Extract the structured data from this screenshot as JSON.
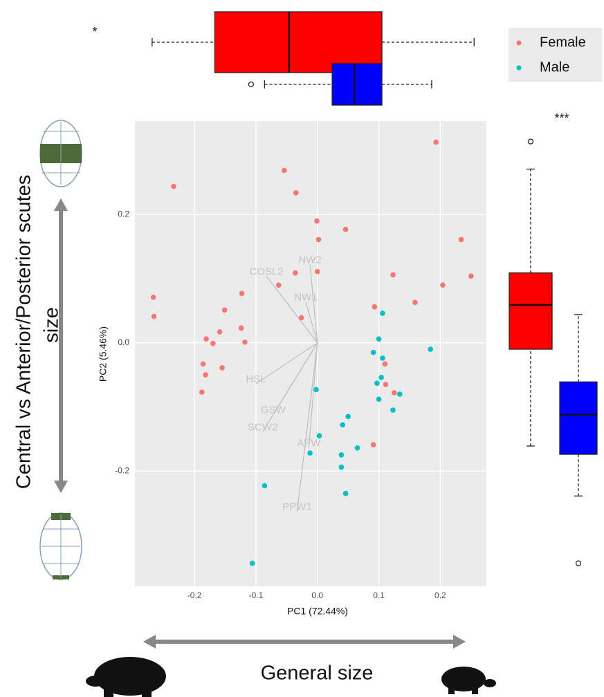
{
  "chart_data": [
    {
      "type": "scatter",
      "x_label": "PC1 (72.44%)",
      "y_label": "PC2 (5.46%)",
      "xlim": [
        -0.297,
        0.275
      ],
      "ylim": [
        -0.38,
        0.346
      ],
      "xticks": [
        -0.2,
        -0.1,
        {
          "value": 0,
          "label": "0.0"
        },
        0.1,
        0.2
      ],
      "yticks": [
        -0.2,
        {
          "value": 0,
          "label": "0.0"
        },
        0.2
      ],
      "grid": true,
      "legend": "top-right",
      "series": [
        {
          "name": "Female",
          "color": "#F8766D",
          "x": [
            -0.234,
            -0.054,
            -0.035,
            0.193,
            -0.001,
            0.002,
            0.046,
            0.234,
            0.25,
            0.204,
            0.123,
            0.159,
            0.093,
            -0.036,
            0,
            -0.063,
            -0.026,
            -0.123,
            -0.267,
            -0.266,
            -0.151,
            -0.159,
            -0.181,
            -0.17,
            -0.186,
            -0.182,
            -0.155,
            -0.188,
            -0.124,
            -0.118,
            0.11,
            0.111,
            0.125,
            0.091
          ],
          "values": [
            0.244,
            0.269,
            0.234,
            0.313,
            0.19,
            0.161,
            0.177,
            0.161,
            0.104,
            0.09,
            0.106,
            0.063,
            0.056,
            0.109,
            0.111,
            0.09,
            0.039,
            0.077,
            0.071,
            0.041,
            0.051,
            0.017,
            0.006,
            -0.001,
            -0.033,
            -0.05,
            -0.039,
            -0.077,
            0.023,
            0.001,
            -0.033,
            -0.065,
            -0.078,
            -0.159
          ]
        },
        {
          "name": "Male",
          "color": "#00BFC4",
          "x": [
            0.106,
            0.1,
            0.091,
            0.106,
            0.097,
            0.104,
            0.1,
            0.134,
            0.123,
            0.184,
            -0.002,
            0.05,
            0.041,
            0.065,
            0.003,
            -0.012,
            0.039,
            0.039,
            0.046,
            -0.086,
            -0.106
          ],
          "values": [
            0.046,
            0.006,
            -0.015,
            -0.024,
            -0.063,
            -0.054,
            -0.088,
            -0.08,
            -0.105,
            -0.01,
            -0.073,
            -0.115,
            -0.128,
            -0.164,
            -0.145,
            -0.172,
            -0.175,
            -0.194,
            -0.235,
            -0.223,
            -0.344
          ]
        }
      ],
      "loadings": [
        {
          "name": "NW2",
          "x": -0.012,
          "y": 0.122
        },
        {
          "name": "COSL2",
          "x": -0.083,
          "y": 0.104
        },
        {
          "name": "NW1",
          "x": -0.019,
          "y": 0.064
        },
        {
          "name": "HSL",
          "x": -0.1,
          "y": -0.064
        },
        {
          "name": "GSW",
          "x": -0.072,
          "y": -0.112
        },
        {
          "name": "SCW2",
          "x": -0.089,
          "y": -0.139
        },
        {
          "name": "APW",
          "x": -0.014,
          "y": -0.164
        },
        {
          "name": "PPW1",
          "x": -0.033,
          "y": -0.263
        }
      ]
    },
    {
      "type": "boxplot",
      "orientation": "horizontal",
      "xlim": [
        -0.297,
        0.275
      ],
      "annotation": "*",
      "series": [
        {
          "color": "#FF0000",
          "whisker_low": -0.269,
          "q1": -0.167,
          "median": -0.046,
          "q3": 0.105,
          "whisker_high": 0.255,
          "outliers": []
        },
        {
          "color": "#0000FF",
          "whisker_low": -0.086,
          "q1": 0.024,
          "median": 0.06,
          "q3": 0.105,
          "whisker_high": 0.186,
          "outliers": [
            -0.108
          ]
        }
      ]
    },
    {
      "type": "boxplot",
      "orientation": "vertical",
      "ylim": [
        -0.38,
        0.346
      ],
      "annotation": "***",
      "series": [
        {
          "color": "#FF0000",
          "whisker_low": -0.161,
          "q1": -0.01,
          "median": 0.059,
          "q3": 0.109,
          "whisker_high": 0.271,
          "outliers": [
            0.314
          ]
        },
        {
          "color": "#0000FF",
          "whisker_low": -0.239,
          "q1": -0.174,
          "median": -0.112,
          "q3": -0.061,
          "whisker_high": 0.044,
          "outliers": [
            -0.344
          ]
        }
      ]
    }
  ],
  "side_labels": {
    "vertical_line1": "Central vs Anterior/Posterior scutes",
    "vertical_line2": "size",
    "horizontal": "General size"
  }
}
